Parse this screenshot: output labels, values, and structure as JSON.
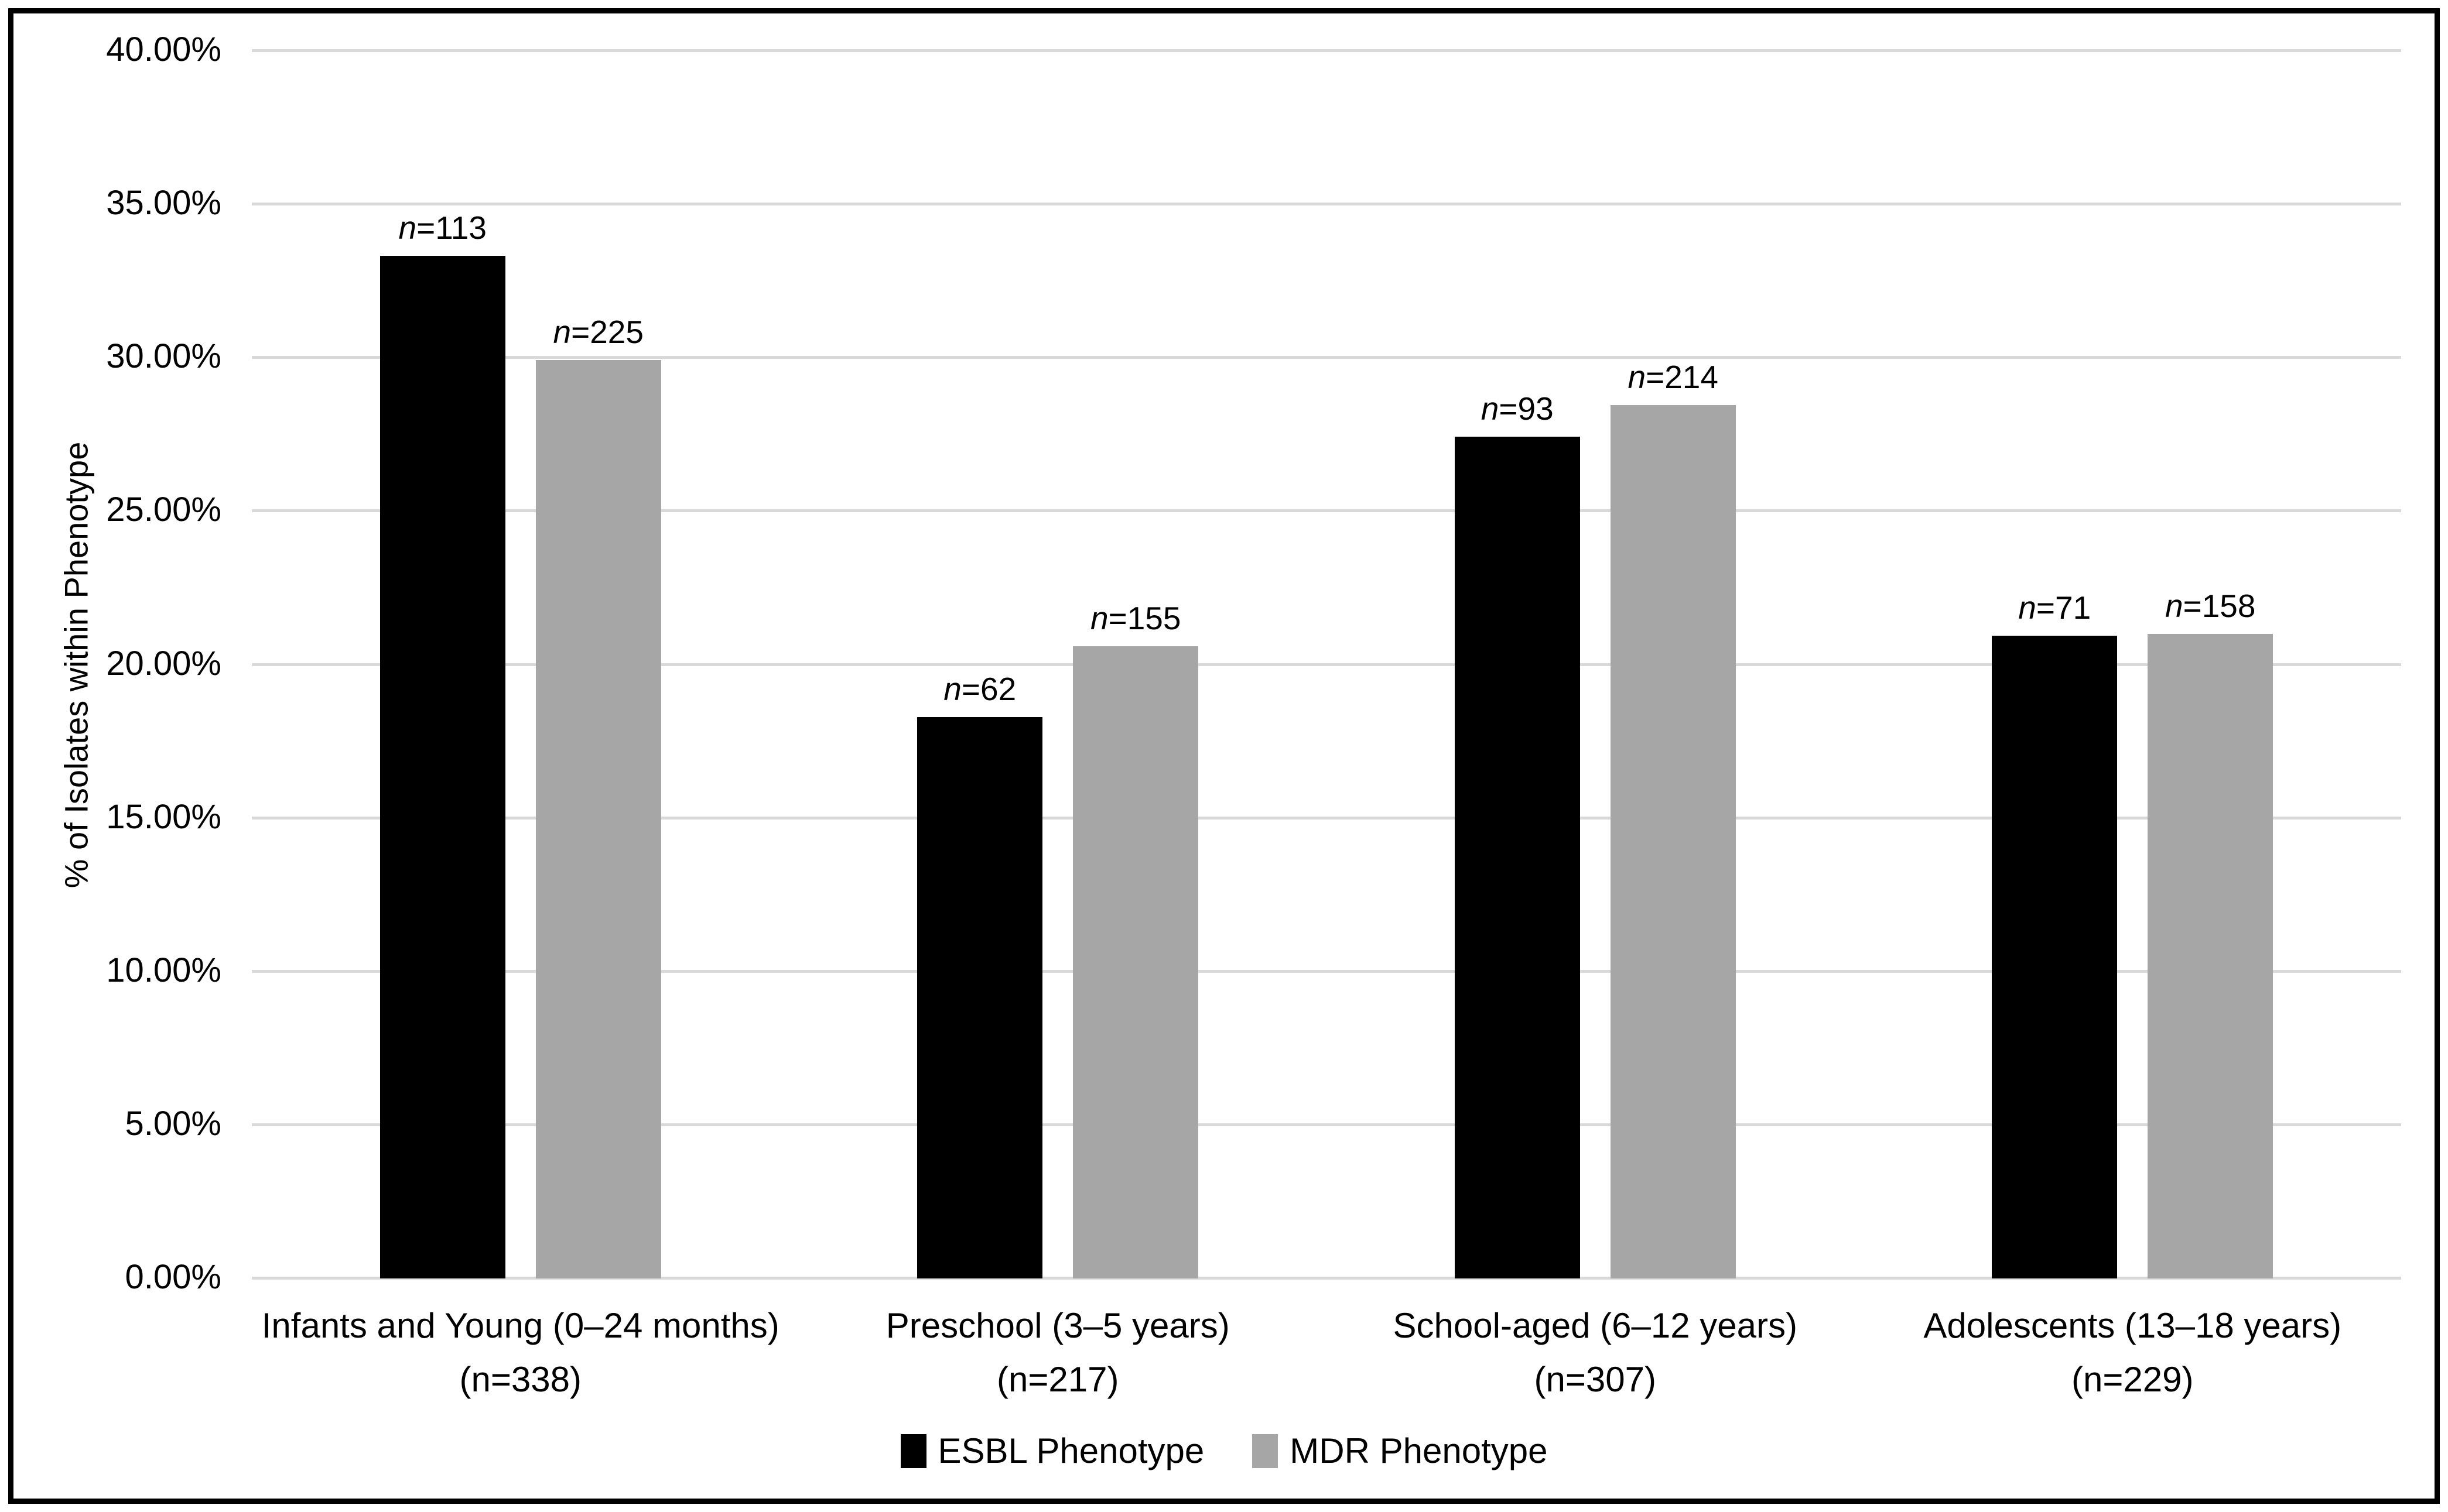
{
  "figure": {
    "background_color": "#FFFFFF",
    "border_color": "#000000",
    "gridline_color": "#D9D9D9",
    "text_color": "#000000"
  },
  "chart_data": {
    "type": "bar",
    "title": "",
    "xlabel": "",
    "ylabel": "% of Isolates within Phenotype",
    "ylim": [
      0,
      40
    ],
    "y_tick_step": 5,
    "y_tick_labels": [
      "0.00%",
      "5.00%",
      "10.00%",
      "15.00%",
      "20.00%",
      "25.00%",
      "30.00%",
      "35.00%",
      "40.00%"
    ],
    "grid": true,
    "legend_position": "bottom-center",
    "categories": [
      {
        "line1": "Infants and Young (0–24 months)",
        "line2": "(n=338)"
      },
      {
        "line1": "Preschool (3–5 years)",
        "line2": "(n=217)"
      },
      {
        "line1": "School-aged (6–12 years)",
        "line2": "(n=307)"
      },
      {
        "line1": "Adolescents (13–18 years)",
        "line2": "(n=229)"
      }
    ],
    "series": [
      {
        "name": "ESBL Phenotype",
        "color": "#000000",
        "values": [
          33.33,
          18.29,
          27.43,
          20.94
        ],
        "bar_labels": [
          "n=113",
          "n=62",
          "n=93",
          "n=71"
        ]
      },
      {
        "name": "MDR Phenotype",
        "color": "#A6A6A6",
        "values": [
          29.92,
          20.61,
          28.46,
          21.01
        ],
        "bar_labels": [
          "n=225",
          "n=155",
          "n=214",
          "n=158"
        ]
      }
    ]
  }
}
